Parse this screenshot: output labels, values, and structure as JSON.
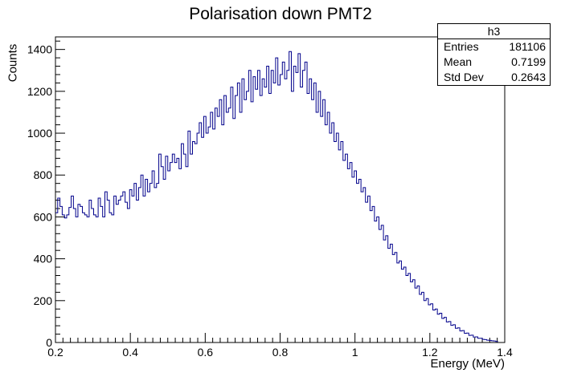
{
  "chart_data": {
    "type": "histogram",
    "title": "Polarisation down PMT2",
    "xlabel": "Energy (MeV)",
    "ylabel": "Counts",
    "xlim": [
      0.2,
      1.4
    ],
    "ylim": [
      0,
      1460
    ],
    "x_ticks": [
      "0.2",
      "0.4",
      "0.6",
      "0.8",
      "1",
      "1.2",
      "1.4"
    ],
    "y_ticks": [
      "0",
      "200",
      "400",
      "600",
      "800",
      "1000",
      "1200",
      "1400"
    ],
    "color": "#00008b",
    "bin_width": 0.006,
    "series": [
      {
        "x_start": 0.2,
        "values": [
          620,
          690,
          650,
          610,
          595,
          610,
          645,
          700,
          640,
          600,
          660,
          650,
          620,
          610,
          600,
          680,
          640,
          610,
          600,
          690,
          650,
          600,
          720,
          680,
          620,
          610,
          700,
          660,
          680,
          700,
          720,
          670,
          640,
          730,
          700,
          760,
          680,
          740,
          800,
          700,
          780,
          720,
          760,
          820,
          740,
          760,
          900,
          840,
          780,
          890,
          820,
          860,
          900,
          860,
          880,
          830,
          950,
          900,
          840,
          1010,
          900,
          960,
          950,
          1000,
          1050,
          980,
          1080,
          1000,
          1030,
          1100,
          1020,
          1120,
          1080,
          1160,
          1040,
          1180,
          1100,
          1120,
          1220,
          1070,
          1180,
          1240,
          1100,
          1260,
          1160,
          1200,
          1300,
          1150,
          1270,
          1210,
          1300,
          1180,
          1260,
          1220,
          1320,
          1190,
          1300,
          1240,
          1360,
          1230,
          1280,
          1340,
          1260,
          1300,
          1390,
          1200,
          1320,
          1290,
          1380,
          1220,
          1300,
          1340,
          1190,
          1260,
          1160,
          1240,
          1100,
          1200,
          1080,
          1160,
          1040,
          1100,
          1000,
          1050,
          960,
          1000,
          920,
          960,
          870,
          900,
          830,
          860,
          790,
          820,
          760,
          780,
          720,
          740,
          670,
          700,
          630,
          650,
          580,
          600,
          540,
          560,
          490,
          510,
          450,
          470,
          420,
          430,
          380,
          390,
          350,
          360,
          320,
          330,
          290,
          300,
          260,
          270,
          230,
          240,
          200,
          210,
          180,
          185,
          155,
          160,
          135,
          140,
          115,
          120,
          98,
          100,
          82,
          85,
          68,
          70,
          55,
          57,
          44,
          45,
          34,
          35,
          26,
          27,
          20,
          20,
          15,
          14,
          11,
          10,
          8,
          7,
          5
        ]
      }
    ]
  },
  "stats": {
    "name": "h3",
    "rows": [
      {
        "label": "Entries",
        "value": "181106"
      },
      {
        "label": "Mean",
        "value": "0.7199"
      },
      {
        "label": "Std Dev",
        "value": "0.2643"
      }
    ]
  }
}
